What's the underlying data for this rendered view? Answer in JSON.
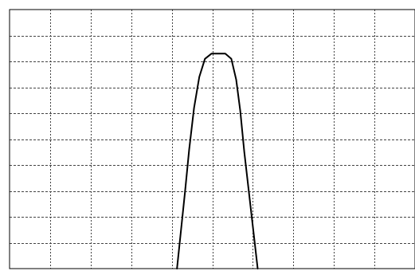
{
  "chart_data": {
    "type": "line",
    "title": "",
    "xlabel": "",
    "ylabel": "",
    "xlim": [
      0,
      10
    ],
    "ylim": [
      0,
      10
    ],
    "grid": true,
    "grid_style": "dashed",
    "x_gridlines": [
      1,
      2,
      3,
      4,
      5,
      6,
      7,
      8,
      9
    ],
    "y_gridlines": [
      1,
      2,
      3,
      4,
      5,
      6,
      7,
      8,
      9
    ],
    "series": [
      {
        "color": "#000000",
        "points": [
          [
            4.13,
            0.0
          ],
          [
            4.23,
            1.5
          ],
          [
            4.33,
            3.0
          ],
          [
            4.43,
            4.6
          ],
          [
            4.55,
            6.2
          ],
          [
            4.68,
            7.4
          ],
          [
            4.82,
            8.1
          ],
          [
            4.98,
            8.3
          ],
          [
            5.32,
            8.3
          ],
          [
            5.47,
            8.1
          ],
          [
            5.59,
            7.3
          ],
          [
            5.69,
            6.1
          ],
          [
            5.79,
            4.5
          ],
          [
            5.9,
            3.0
          ],
          [
            6.01,
            1.5
          ],
          [
            6.12,
            0.0
          ]
        ]
      }
    ]
  }
}
